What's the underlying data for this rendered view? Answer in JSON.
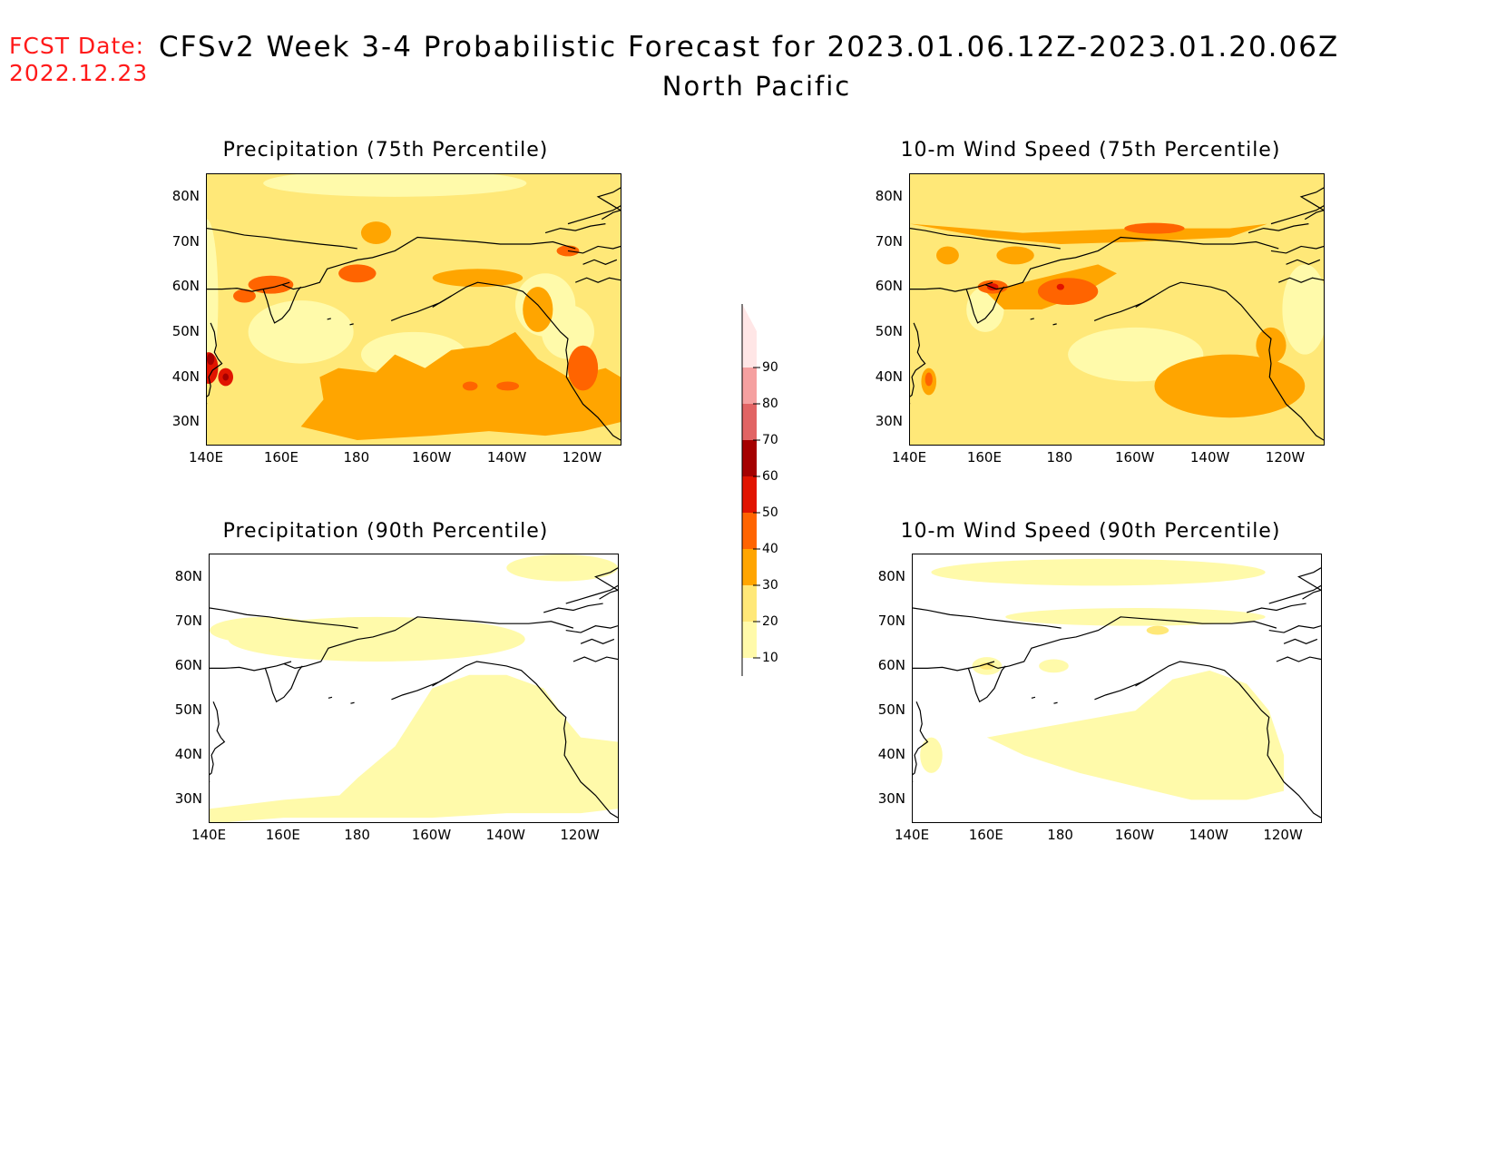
{
  "header": {
    "fcst_label": "FCST Date:",
    "fcst_date": "2022.12.23",
    "title": "CFSv2 Week 3-4 Probabilistic Forecast for 2023.01.06.12Z-2023.01.20.06Z",
    "region": "North Pacific"
  },
  "panels": [
    {
      "title": "Precipitation (75th Percentile)"
    },
    {
      "title": "10-m Wind Speed (75th Percentile)"
    },
    {
      "title": "Precipitation (90th Percentile)"
    },
    {
      "title": "10-m Wind Speed (90th Percentile)"
    }
  ],
  "axes": {
    "lat_labels": [
      "80N",
      "70N",
      "60N",
      "50N",
      "40N",
      "30N"
    ],
    "lon_labels": [
      "140E",
      "160E",
      "180",
      "160W",
      "140W",
      "120W"
    ]
  },
  "colorbar": {
    "levels": [
      "10",
      "20",
      "30",
      "40",
      "50",
      "60",
      "70",
      "80",
      "90"
    ],
    "colors": [
      "#fffaaa",
      "#ffe878",
      "#ffa500",
      "#ff6400",
      "#e11400",
      "#a50000",
      "#e16464",
      "#f5a0a0",
      "#ffe6e6"
    ]
  }
}
